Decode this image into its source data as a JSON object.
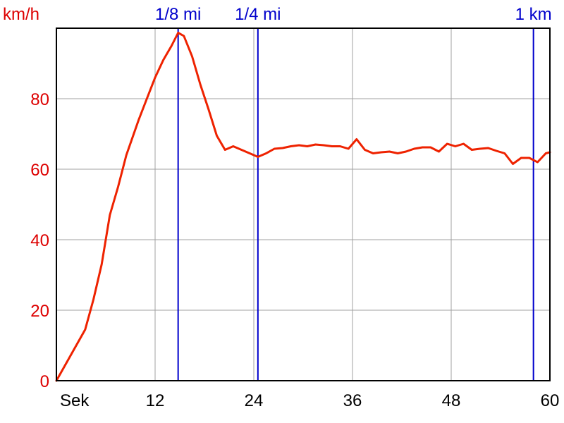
{
  "chart_data": {
    "type": "line",
    "ylabel": "km/h",
    "xlabel": "Sek",
    "xlim": [
      0,
      60
    ],
    "ylim": [
      0,
      100
    ],
    "x_ticks": [
      12,
      24,
      36,
      48,
      60
    ],
    "y_ticks": [
      0,
      20,
      40,
      60,
      80
    ],
    "grid": true,
    "colors": {
      "series": "#ee2200",
      "y_labels": "#dd0000",
      "markers": "#0000cc",
      "grid": "#a0a0a0",
      "axes": "#000000"
    },
    "markers": [
      {
        "label": "1/8 mi",
        "x": 14.8
      },
      {
        "label": "1/4 mi",
        "x": 24.5
      },
      {
        "label": "1 km",
        "x": 58.0
      }
    ],
    "series": [
      {
        "x": [
          0,
          3.5,
          4.5,
          5.5,
          6.5,
          7.5,
          8.5,
          10,
          11,
          12,
          13,
          14,
          14.8,
          15.5,
          16.5,
          17.5,
          18.5,
          19.5,
          20.5,
          21.5,
          22.5,
          23.5,
          24.5,
          25.5,
          26.5,
          27.5,
          28.5,
          29.5,
          30.5,
          31.5,
          32.5,
          33.5,
          34.5,
          35.5,
          36.5,
          37.5,
          38.5,
          39.5,
          40.5,
          41.5,
          42.5,
          43.5,
          44.5,
          45.5,
          46.5,
          47.5,
          48.5,
          49.5,
          50.5,
          51.5,
          52.5,
          53.5,
          54.5,
          55.5,
          56.5,
          57.5,
          58.5,
          59.5,
          60
        ],
        "y": [
          0,
          14.5,
          23,
          33,
          47,
          55,
          64,
          74,
          80,
          86,
          91,
          95,
          98.7,
          97.8,
          92,
          84,
          77,
          69.5,
          65.5,
          66.5,
          65.5,
          64.5,
          63.5,
          64.5,
          65.8,
          66,
          66.5,
          66.8,
          66.5,
          67,
          66.8,
          66.5,
          66.5,
          65.8,
          68.5,
          65.5,
          64.5,
          64.8,
          65,
          64.5,
          65,
          65.8,
          66.2,
          66.2,
          65,
          67.2,
          66.5,
          67.2,
          65.5,
          65.8,
          66,
          65.2,
          64.5,
          61.5,
          63.2,
          63.2,
          62,
          64.5,
          64.8
        ]
      }
    ]
  }
}
